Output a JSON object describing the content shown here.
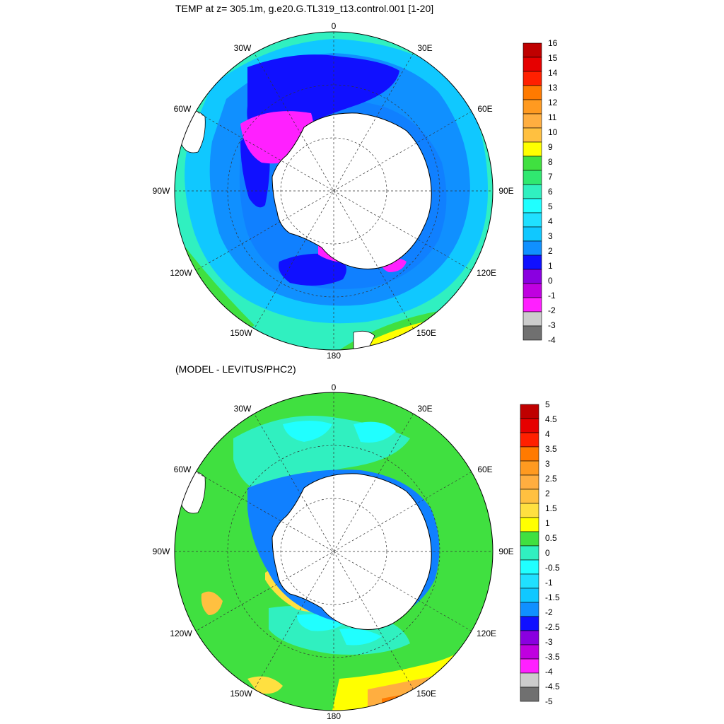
{
  "panels": [
    {
      "title": "TEMP at z= 305.1m, g.e20.G.TL319_t13.control.001 [1-20]",
      "colorbar": {
        "labels": [
          "16",
          "15",
          "14",
          "13",
          "12",
          "11",
          "10",
          "9",
          "8",
          "7",
          "6",
          "5",
          "4",
          "3",
          "2",
          "1",
          "0",
          "-1",
          "-2",
          "-3",
          "-4"
        ],
        "colors": [
          "#bf0000",
          "#e60000",
          "#ff2000",
          "#ff7a00",
          "#ff9a20",
          "#ffae40",
          "#ffc040",
          "#ffff00",
          "#40e040",
          "#30e870",
          "#30f0c0",
          "#20ffff",
          "#20e0ff",
          "#10c8ff",
          "#1090ff",
          "#1010ff",
          "#8a00e0",
          "#c000e0",
          "#ff20ff",
          "#cccccc",
          "#707070"
        ]
      }
    },
    {
      "title": "(MODEL - LEVITUS/PHC2)",
      "colorbar": {
        "labels": [
          "5",
          "4.5",
          "4",
          "3.5",
          "3",
          "2.5",
          "2",
          "1.5",
          "1",
          "0.5",
          "0",
          "-0.5",
          "-1",
          "-1.5",
          "-2",
          "-2.5",
          "-3",
          "-3.5",
          "-4",
          "-4.5",
          "-5"
        ],
        "colors": [
          "#bf0000",
          "#e60000",
          "#ff2000",
          "#ff7a00",
          "#ff9a20",
          "#ffae40",
          "#ffc040",
          "#ffe040",
          "#ffff00",
          "#40e040",
          "#30f0c0",
          "#20ffff",
          "#20e0ff",
          "#10c8ff",
          "#1090ff",
          "#1010ff",
          "#8a00e0",
          "#c000e0",
          "#ff20ff",
          "#cccccc",
          "#707070"
        ]
      }
    }
  ],
  "longitude_labels": {
    "top": "0",
    "ne1": "30E",
    "ne2": "60E",
    "east": "90E",
    "se1": "120E",
    "se2": "150E",
    "bottom": "180",
    "sw2": "150W",
    "sw1": "120W",
    "west": "90W",
    "nw2": "60W",
    "nw1": "30W"
  },
  "colors": {
    "land": "#ffffff",
    "grid": "#333333"
  }
}
